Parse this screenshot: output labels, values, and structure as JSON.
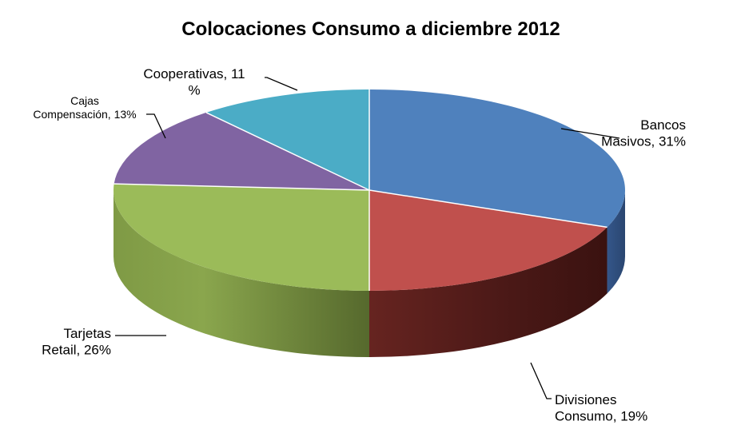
{
  "chart_data": {
    "type": "pie",
    "title": "Colocaciones Consumo a diciembre 2012",
    "three_d": true,
    "legend": "none",
    "slices": [
      {
        "label": "Bancos Masivos",
        "value": 31,
        "value_label": "31%",
        "color": "#4F81BD",
        "label_lines": [
          "Bancos",
          "Masivos, 31%"
        ]
      },
      {
        "label": "Divisiones Consumo",
        "value": 19,
        "value_label": "19%",
        "color": "#C0504D",
        "label_lines": [
          "Divisiones",
          "Consumo, 19%"
        ]
      },
      {
        "label": "Tarjetas Retail",
        "value": 26,
        "value_label": "26%",
        "color": "#9BBB59",
        "label_lines": [
          "Tarjetas",
          "Retail, 26%"
        ]
      },
      {
        "label": "Cajas Compensación",
        "value": 13,
        "value_label": "13%",
        "color": "#8064A2",
        "label_lines": [
          "Cajas",
          "Compensación, 13%"
        ]
      },
      {
        "label": "Cooperativas",
        "value": 11,
        "value_label": "11%",
        "color": "#4BACC6",
        "label_lines": [
          "Cooperativas, 11",
          "%"
        ]
      }
    ]
  }
}
